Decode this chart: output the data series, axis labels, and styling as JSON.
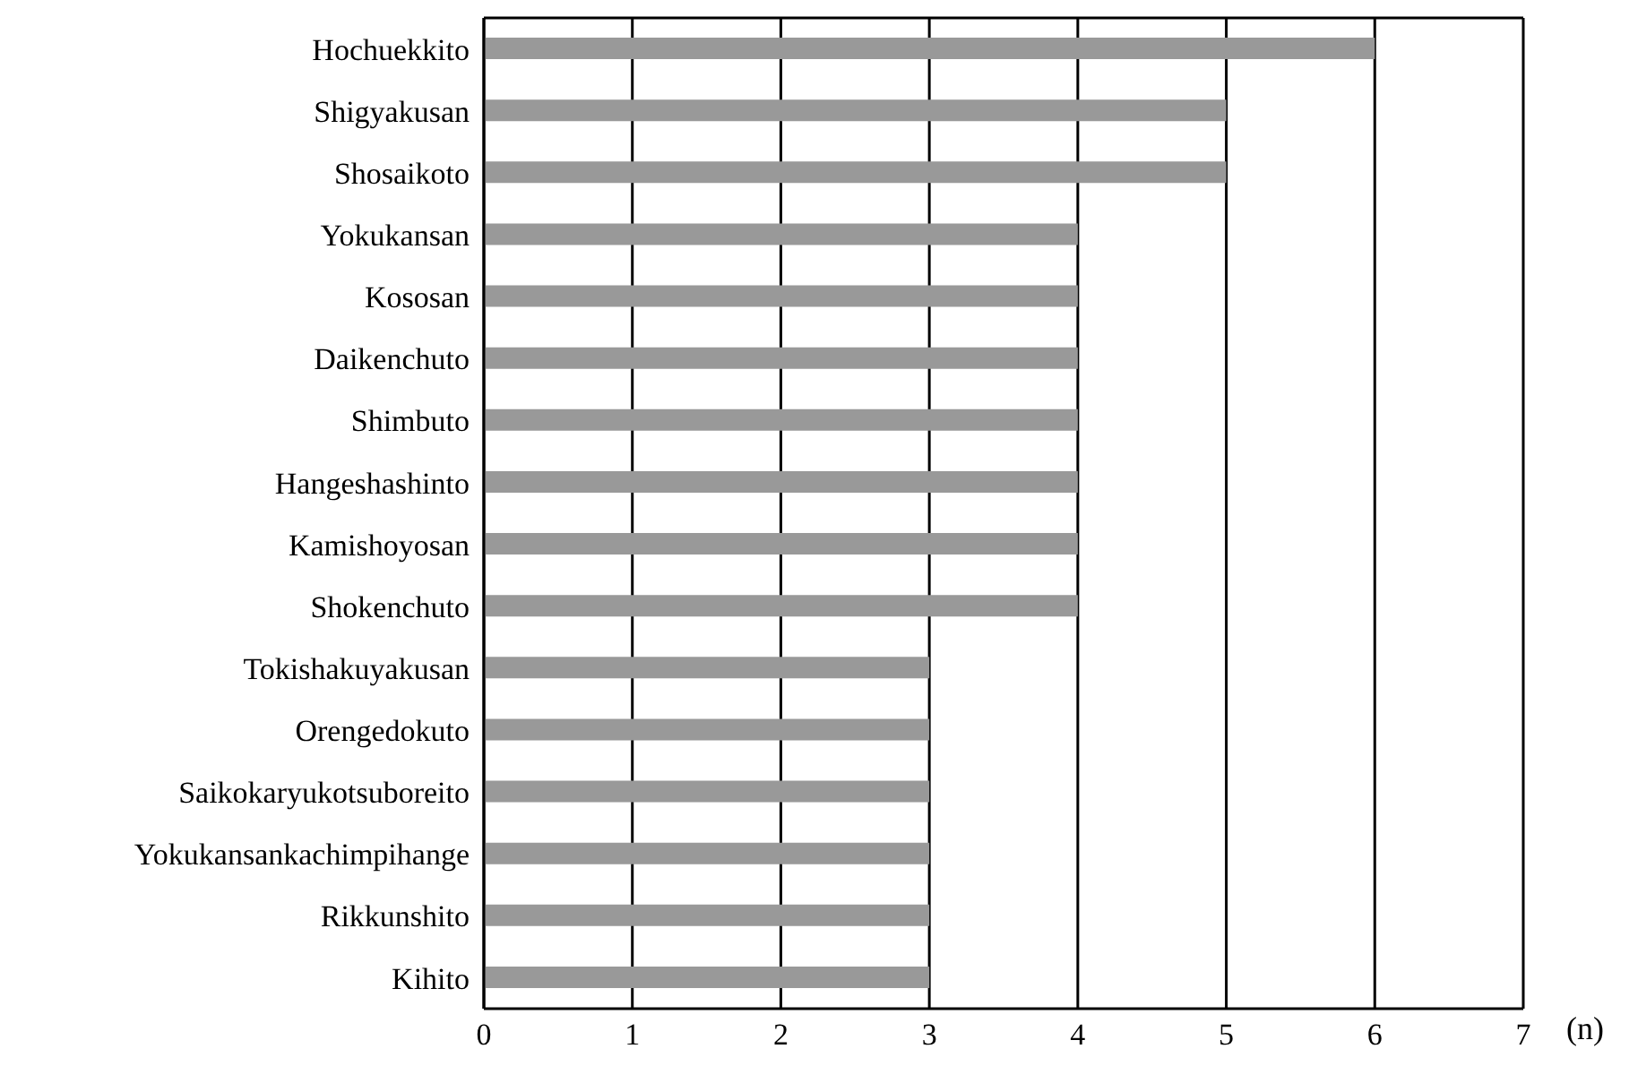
{
  "chart_data": {
    "type": "bar",
    "orientation": "horizontal",
    "xlabel": "(n)",
    "categories": [
      "Hochuekkito",
      "Shigyakusan",
      "Shosaikoto",
      "Yokukansan",
      "Kososan",
      "Daikenchuto",
      "Shimbuto",
      "Hangeshashinto",
      "Kamishoyosan",
      "Shokenchuto",
      "Tokishakuyakusan",
      "Orengedokuto",
      "Saikokaryukotsuboreito",
      "Yokukansankachimpihange",
      "Rikkunshito",
      "Kihito"
    ],
    "values": [
      6,
      5,
      5,
      4,
      4,
      4,
      4,
      4,
      4,
      4,
      3,
      3,
      3,
      3,
      3,
      3
    ],
    "color": "#999999",
    "xlim": [
      0,
      7
    ],
    "xticks": [
      0,
      1,
      2,
      3,
      4,
      5,
      6,
      7
    ],
    "grid": "x",
    "legend": false
  }
}
